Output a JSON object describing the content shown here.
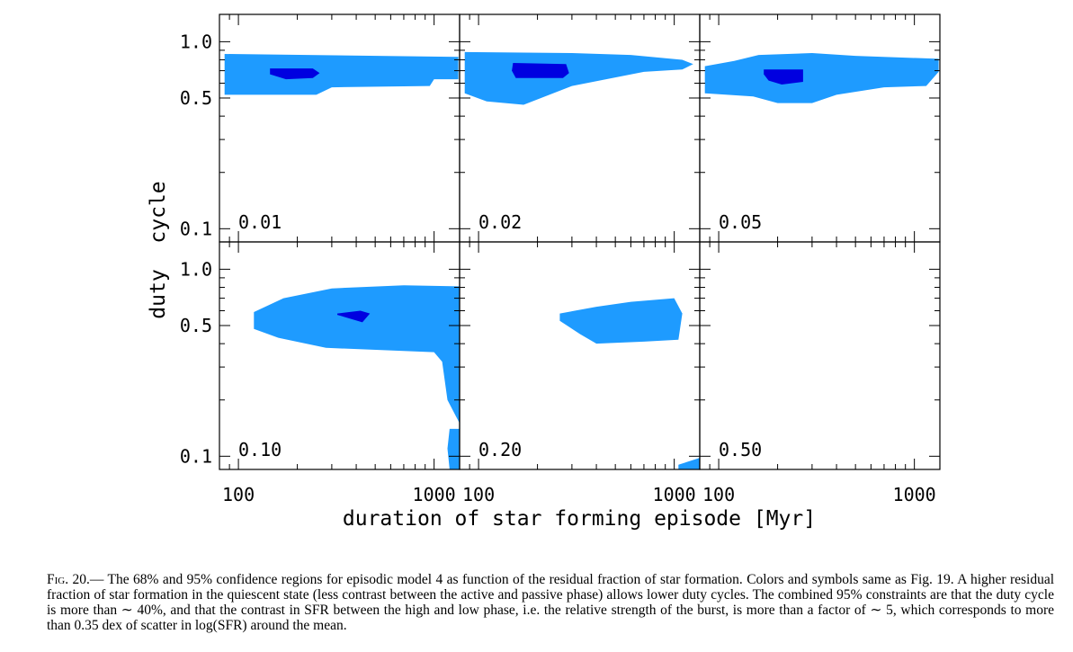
{
  "figure": {
    "xlabel": "duration of star forming episode [Myr]",
    "ylabel_part1": "duty",
    "ylabel_part2": "cycle"
  },
  "chart_data": {
    "type": "contour",
    "xlabel": "duration of star forming episode [Myr]",
    "ylabel": "duty cycle",
    "x_scale": "log",
    "y_scale": "log",
    "xlim": [
      80,
      1350
    ],
    "ylim": [
      0.085,
      1.4
    ],
    "x_ticklabels": [
      "100",
      "1000"
    ],
    "y_ticklabels": [
      "0.1",
      "0.5",
      "1.0"
    ],
    "levels": [
      "95%",
      "68%"
    ],
    "colors": {
      "95%": "#1e9bff",
      "68%": "#0000e0"
    },
    "panels": [
      {
        "label": "0.01",
        "regions": [
          {
            "level": "95%",
            "points": [
              [
                85,
                0.86
              ],
              [
                1330,
                0.83
              ],
              [
                1330,
                0.63
              ],
              [
                1000,
                0.63
              ],
              [
                950,
                0.58
              ],
              [
                300,
                0.57
              ],
              [
                250,
                0.52
              ],
              [
                85,
                0.52
              ]
            ]
          },
          {
            "level": "68%",
            "points": [
              [
                145,
                0.72
              ],
              [
                240,
                0.72
              ],
              [
                260,
                0.68
              ],
              [
                240,
                0.64
              ],
              [
                175,
                0.63
              ],
              [
                145,
                0.67
              ]
            ]
          }
        ]
      },
      {
        "label": "0.02",
        "regions": [
          {
            "level": "95%",
            "points": [
              [
                85,
                0.88
              ],
              [
                300,
                0.87
              ],
              [
                600,
                0.85
              ],
              [
                1100,
                0.8
              ],
              [
                1250,
                0.76
              ],
              [
                1100,
                0.71
              ],
              [
                700,
                0.69
              ],
              [
                300,
                0.58
              ],
              [
                170,
                0.46
              ],
              [
                110,
                0.48
              ],
              [
                85,
                0.53
              ]
            ]
          },
          {
            "level": "68%",
            "points": [
              [
                150,
                0.77
              ],
              [
                280,
                0.76
              ],
              [
                290,
                0.68
              ],
              [
                270,
                0.64
              ],
              [
                155,
                0.64
              ],
              [
                148,
                0.7
              ]
            ]
          }
        ]
      },
      {
        "label": "0.05",
        "regions": [
          {
            "level": "95%",
            "points": [
              [
                85,
                0.74
              ],
              [
                120,
                0.79
              ],
              [
                160,
                0.85
              ],
              [
                300,
                0.87
              ],
              [
                500,
                0.84
              ],
              [
                1330,
                0.81
              ],
              [
                1330,
                0.69
              ],
              [
                1150,
                0.58
              ],
              [
                700,
                0.57
              ],
              [
                400,
                0.52
              ],
              [
                300,
                0.47
              ],
              [
                200,
                0.47
              ],
              [
                150,
                0.51
              ],
              [
                85,
                0.53
              ]
            ]
          },
          {
            "level": "68%",
            "points": [
              [
                170,
                0.71
              ],
              [
                270,
                0.71
              ],
              [
                270,
                0.61
              ],
              [
                210,
                0.59
              ],
              [
                180,
                0.62
              ],
              [
                170,
                0.67
              ]
            ]
          }
        ]
      },
      {
        "label": "0.10",
        "regions": [
          {
            "level": "95%",
            "points": [
              [
                120,
                0.59
              ],
              [
                170,
                0.7
              ],
              [
                300,
                0.79
              ],
              [
                700,
                0.82
              ],
              [
                1350,
                0.81
              ],
              [
                1350,
                0.15
              ],
              [
                1170,
                0.2
              ],
              [
                1100,
                0.32
              ],
              [
                1000,
                0.36
              ],
              [
                280,
                0.38
              ],
              [
                160,
                0.43
              ],
              [
                120,
                0.48
              ]
            ]
          },
          {
            "level": "95%",
            "points": [
              [
                1200,
                0.14
              ],
              [
                1350,
                0.14
              ],
              [
                1350,
                0.085
              ],
              [
                1200,
                0.085
              ],
              [
                1170,
                0.11
              ]
            ]
          },
          {
            "level": "68%",
            "points": [
              [
                320,
                0.58
              ],
              [
                420,
                0.6
              ],
              [
                470,
                0.58
              ],
              [
                430,
                0.52
              ],
              [
                320,
                0.57
              ]
            ]
          }
        ]
      },
      {
        "label": "0.20",
        "regions": [
          {
            "level": "95%",
            "points": [
              [
                260,
                0.58
              ],
              [
                400,
                0.63
              ],
              [
                600,
                0.67
              ],
              [
                1000,
                0.7
              ],
              [
                1100,
                0.58
              ],
              [
                1050,
                0.42
              ],
              [
                700,
                0.41
              ],
              [
                400,
                0.4
              ],
              [
                330,
                0.45
              ],
              [
                260,
                0.53
              ]
            ]
          },
          {
            "level": "95%",
            "points": [
              [
                1050,
                0.09
              ],
              [
                1350,
                0.098
              ],
              [
                1350,
                0.085
              ],
              [
                1050,
                0.085
              ]
            ]
          }
        ]
      },
      {
        "label": "0.50",
        "regions": []
      }
    ]
  },
  "caption": {
    "fig_label": "Fig. 20.",
    "text": "— The 68% and 95% confidence regions for episodic model 4 as function of the residual fraction of star formation. Colors and symbols same as Fig. 19. A higher residual fraction of star formation in the quiescent state (less contrast between the active and passive phase) allows lower duty cycles. The combined 95% constraints are that the duty cycle is more than ∼ 40%, and that the contrast in SFR between the high and low phase, i.e. the relative strength of the burst, is more than a factor of ∼ 5, which corresponds to more than 0.35 dex of scatter in log(SFR) around the mean."
  }
}
